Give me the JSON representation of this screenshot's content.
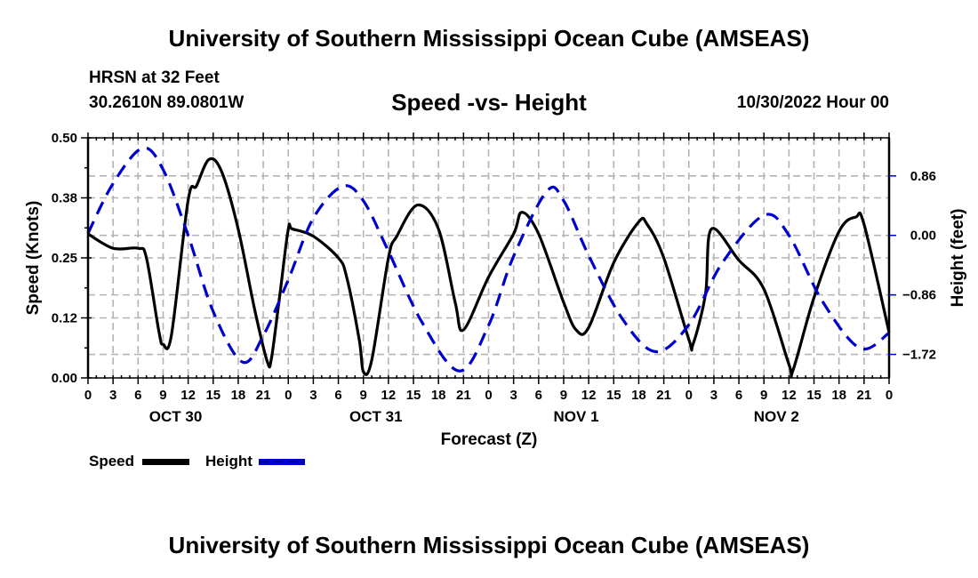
{
  "header": {
    "title": "University of Southern Mississippi Ocean Cube (AMSEAS)",
    "station": "HRSN at 32 Feet",
    "coordinates": "30.2610N  89.0801W",
    "subtitle": "Speed -vs- Height",
    "run_time": "10/30/2022 Hour 00"
  },
  "footer": {
    "title": "University of Southern Mississippi Ocean Cube (AMSEAS)"
  },
  "legend": {
    "speed_label": "Speed",
    "height_label": "Height"
  },
  "chart_data": {
    "type": "line",
    "title": "Speed -vs- Height",
    "xlabel": "Forecast (Z)",
    "ylabel": "Speed (Knots)",
    "y2label": "Height (feet)",
    "xlim_hours": [
      0,
      96
    ],
    "ylim": [
      0,
      0.5
    ],
    "y2lim": [
      -2.06,
      1.41
    ],
    "grid": true,
    "legend_position": "bottom-left",
    "x_tick_labels": [
      "0",
      "3",
      "6",
      "9",
      "12",
      "15",
      "18",
      "21",
      "0",
      "3",
      "6",
      "9",
      "12",
      "15",
      "18",
      "21",
      "0",
      "3",
      "6",
      "9",
      "12",
      "15",
      "18",
      "21",
      "0",
      "3",
      "6",
      "9",
      "12",
      "15",
      "18",
      "21",
      "0"
    ],
    "day_labels": [
      {
        "label": "OCT 30",
        "center_hour": 12
      },
      {
        "label": "OCT 31",
        "center_hour": 36
      },
      {
        "label": "NOV 1",
        "center_hour": 60
      },
      {
        "label": "NOV 2",
        "center_hour": 84
      }
    ],
    "y_tick_labels": [
      "0.00",
      "0.12",
      "0.25",
      "0.38",
      "0.50"
    ],
    "y_tick_values": [
      0,
      0.125,
      0.25,
      0.375,
      0.5
    ],
    "y2_tick_labels": [
      "0.86",
      "0.00",
      "−0.86",
      "−1.72"
    ],
    "y2_tick_values": [
      0.86,
      0,
      -0.86,
      -1.72
    ],
    "series": [
      {
        "name": "Speed",
        "axis": "left",
        "color": "#000000",
        "style": "solid",
        "x": [
          0,
          3,
          6,
          7,
          8.5,
          9,
          10,
          12,
          13,
          14.5,
          16,
          18,
          20,
          21.5,
          22,
          23,
          24,
          24.5,
          27,
          30,
          31,
          32.5,
          33,
          34,
          36,
          37,
          39.5,
          42,
          44,
          45,
          48,
          51,
          52,
          54,
          57,
          58.5,
          60,
          63,
          66,
          67,
          69,
          72,
          72.5,
          74,
          74.7,
          78,
          81,
          84,
          84.5,
          87,
          90,
          92,
          93,
          96
        ],
        "values": [
          0.3,
          0.27,
          0.27,
          0.25,
          0.096,
          0.07,
          0.09,
          0.37,
          0.4,
          0.455,
          0.43,
          0.31,
          0.14,
          0.033,
          0.043,
          0.175,
          0.31,
          0.31,
          0.295,
          0.25,
          0.21,
          0.08,
          0.013,
          0.037,
          0.25,
          0.295,
          0.36,
          0.31,
          0.157,
          0.1,
          0.21,
          0.3,
          0.345,
          0.3,
          0.157,
          0.1,
          0.105,
          0.24,
          0.325,
          0.32,
          0.25,
          0.08,
          0.07,
          0.175,
          0.31,
          0.245,
          0.185,
          0.028,
          0.017,
          0.167,
          0.305,
          0.335,
          0.32,
          0.095
        ]
      },
      {
        "name": "Height",
        "axis": "right",
        "color": "#0000cc",
        "style": "dashed",
        "x": [
          0,
          3,
          6.5,
          9,
          12,
          15,
          18.5,
          21,
          24,
          27,
          30.5,
          33,
          36,
          40,
          44.5,
          48,
          51,
          55,
          57,
          60,
          64,
          68,
          72,
          76,
          81,
          84,
          88,
          92.5,
          96
        ],
        "values": [
          0.03,
          0.75,
          1.26,
          0.95,
          0.0,
          -1.1,
          -1.83,
          -1.45,
          -0.64,
          0.25,
          0.71,
          0.5,
          -0.23,
          -1.25,
          -1.96,
          -1.3,
          -0.3,
          0.64,
          0.5,
          -0.29,
          -1.2,
          -1.68,
          -1.29,
          -0.4,
          0.29,
          0.0,
          -0.95,
          -1.63,
          -1.41
        ]
      }
    ]
  }
}
